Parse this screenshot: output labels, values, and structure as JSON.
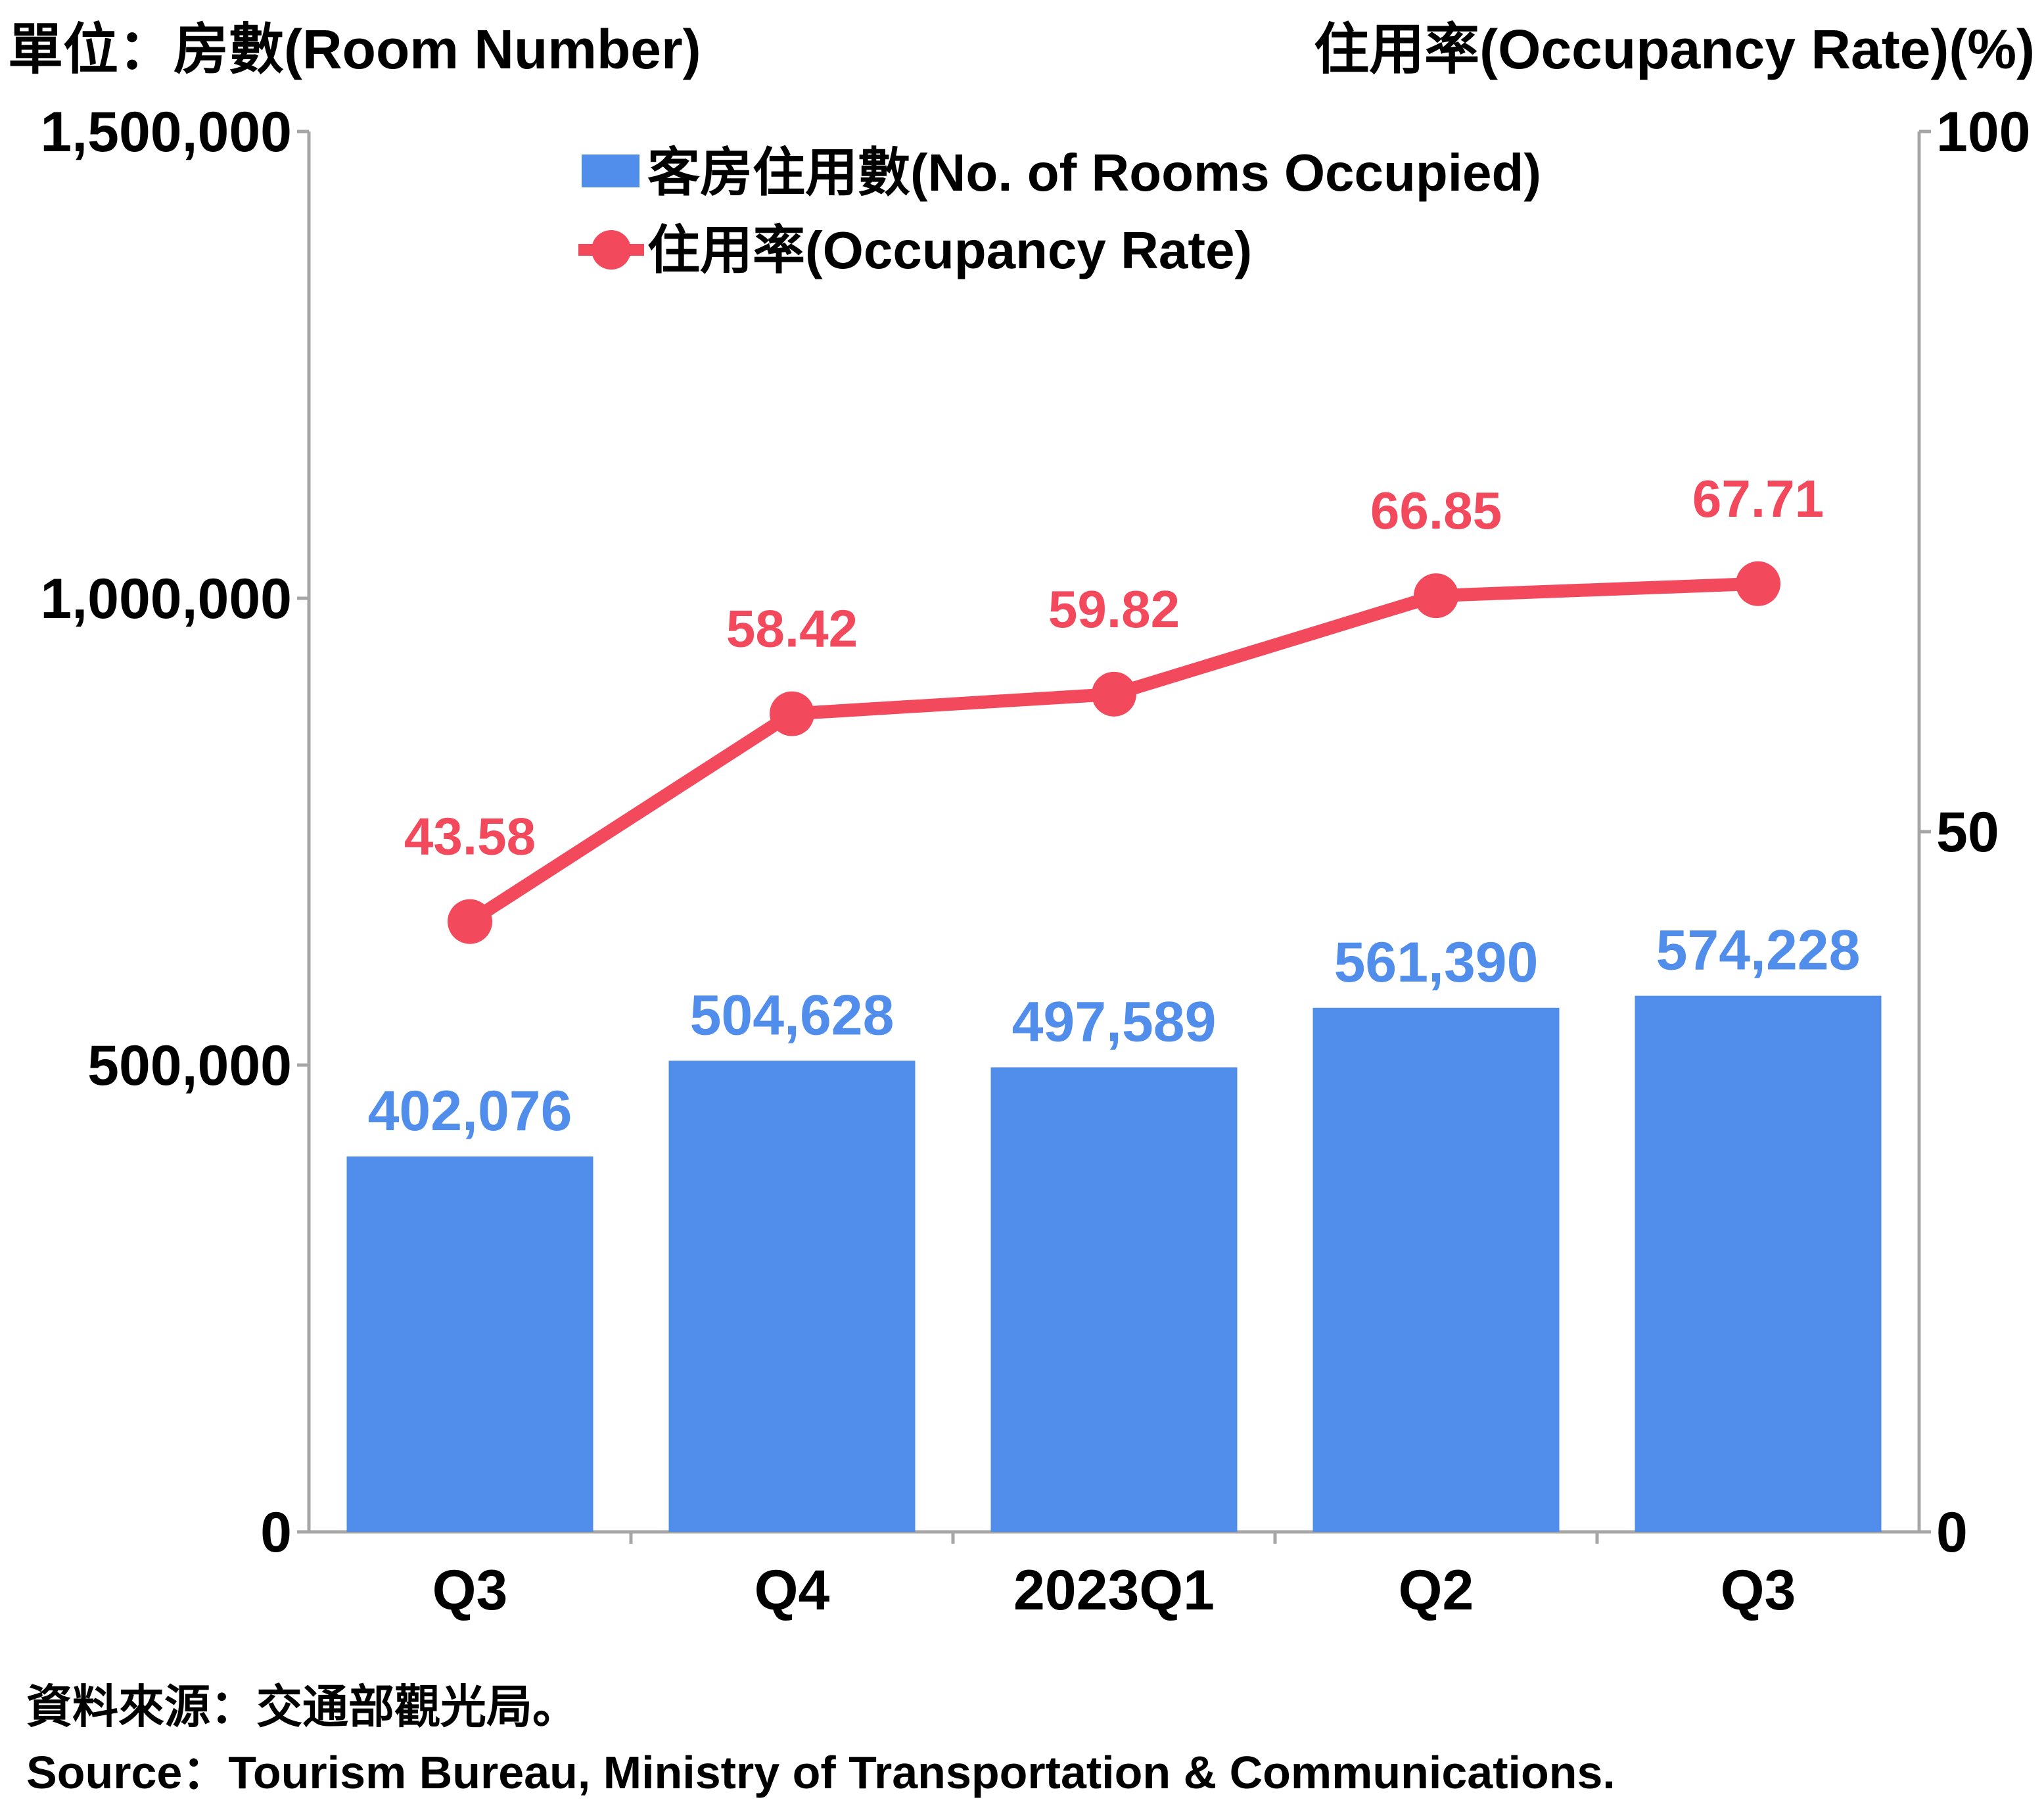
{
  "chart_data": {
    "type": "bar",
    "title": "",
    "left_axis_label": "單位：房數(Room Number)",
    "right_axis_label": "住用率(Occupancy Rate)(%)",
    "categories": [
      "Q3",
      "Q4",
      "2023Q1",
      "Q2",
      "Q3"
    ],
    "series": [
      {
        "name": "客房住用數(No. of Rooms Occupied)",
        "type": "bar",
        "axis": "left",
        "color": "#518EEC",
        "values": [
          402076,
          504628,
          497589,
          561390,
          574228
        ],
        "labels": [
          "402,076",
          "504,628",
          "497,589",
          "561,390",
          "574,228"
        ]
      },
      {
        "name": "住用率(Occupancy Rate)",
        "type": "line",
        "axis": "right",
        "color": "#F2495D",
        "values": [
          43.58,
          58.42,
          59.82,
          66.85,
          67.71
        ],
        "labels": [
          "43.58",
          "58.42",
          "59.82",
          "66.85",
          "67.71"
        ]
      }
    ],
    "y_left": {
      "min": 0,
      "max": 1500000,
      "ticks": [
        0,
        500000,
        1000000,
        1500000
      ],
      "tick_labels": [
        "0",
        "500,000",
        "1,000,000",
        "1,500,000"
      ]
    },
    "y_right": {
      "min": 0,
      "max": 100,
      "ticks": [
        0,
        50,
        100
      ],
      "tick_labels": [
        "0",
        "50",
        "100"
      ]
    },
    "grid": false,
    "legend_position": "top-center"
  },
  "source": {
    "zh": "資料來源：交通部觀光局。",
    "en": "Source：Tourism Bureau, Ministry of Transportation & Communications."
  }
}
